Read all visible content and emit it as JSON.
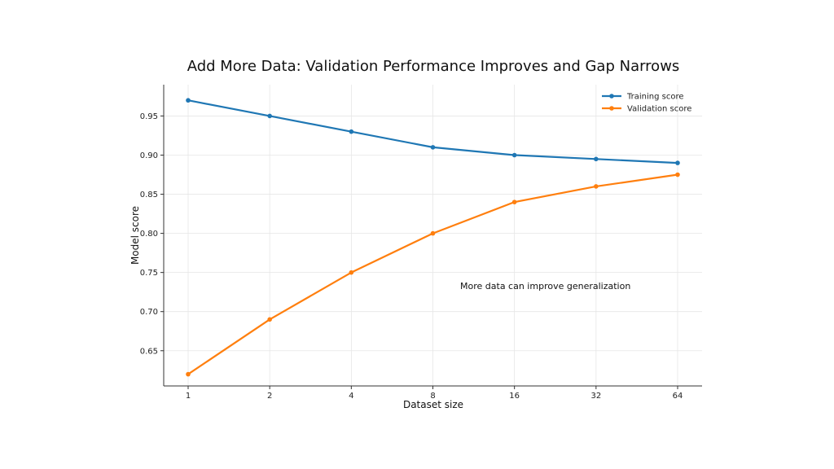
{
  "chart_data": {
    "type": "line",
    "title": "Add More Data: Validation Performance Improves and Gap Narrows",
    "xlabel": "Dataset size",
    "ylabel": "Model score",
    "x_scale": "log2",
    "x": [
      1,
      2,
      4,
      8,
      16,
      32,
      64
    ],
    "x_tick_labels": [
      "1",
      "2",
      "4",
      "8",
      "16",
      "32",
      "64"
    ],
    "y_ticks": [
      0.65,
      0.7,
      0.75,
      0.8,
      0.85,
      0.9,
      0.95
    ],
    "y_tick_labels": [
      "0.65",
      "0.70",
      "0.75",
      "0.80",
      "0.85",
      "0.90",
      "0.95"
    ],
    "ylim": [
      0.605,
      0.99
    ],
    "grid": true,
    "legend_position": "top-right",
    "series": [
      {
        "name": "Training score",
        "color": "#1f77b4",
        "values": [
          0.97,
          0.95,
          0.93,
          0.91,
          0.9,
          0.895,
          0.89
        ]
      },
      {
        "name": "Validation score",
        "color": "#ff7f0e",
        "values": [
          0.62,
          0.69,
          0.75,
          0.8,
          0.84,
          0.86,
          0.875
        ]
      }
    ],
    "annotation": {
      "text": "More data can improve generalization",
      "x": 16,
      "y": 0.733
    }
  }
}
